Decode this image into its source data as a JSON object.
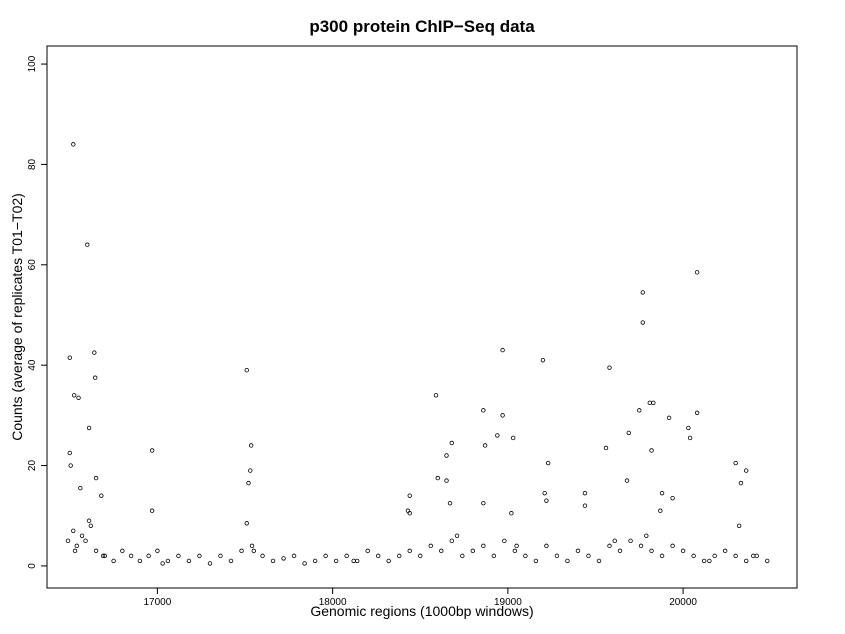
{
  "chart_data": {
    "type": "scatter",
    "title": "p300 protein ChIP−Seq data",
    "xlabel": "Genomic regions (1000bp windows)",
    "ylabel": "Counts (average of replicates T01−T02)",
    "xlim": [
      16370,
      20650
    ],
    "ylim": [
      -4.4,
      103.6
    ],
    "xticks": [
      17000,
      18000,
      19000,
      20000
    ],
    "yticks": [
      0,
      20,
      40,
      60,
      80,
      100
    ],
    "color": "#000000",
    "x": [
      16500,
      16500,
      16505,
      16520,
      16525,
      16550,
      16600,
      16610,
      16640,
      16645,
      16650,
      16680,
      16560,
      16970,
      16970,
      17510,
      17520,
      17530,
      17535,
      17510,
      18440,
      18430,
      18440,
      18590,
      18600,
      18650,
      18650,
      18680,
      18670,
      18860,
      18870,
      18860,
      18940,
      18970,
      18970,
      19030,
      19020,
      19200,
      19210,
      19230,
      19220,
      19440,
      19440,
      19560,
      19580,
      19690,
      19680,
      19750,
      19770,
      19770,
      19810,
      19830,
      19820,
      19880,
      19870,
      19920,
      19940,
      20030,
      20040,
      20080,
      20080,
      20300,
      20330,
      20360,
      20320,
      16490,
      16520,
      16540,
      16570,
      16590,
      16620,
      16650,
      16700,
      16750,
      16800,
      16850,
      16900,
      16950,
      17000,
      17060,
      17120,
      17180,
      17240,
      17300,
      17360,
      17420,
      17480,
      17540,
      17600,
      17660,
      17720,
      17780,
      17840,
      17900,
      17960,
      18020,
      18080,
      18140,
      18200,
      18260,
      18320,
      18380,
      18440,
      18500,
      18560,
      18620,
      18680,
      18740,
      18800,
      18860,
      18920,
      18980,
      19040,
      19100,
      19160,
      19220,
      19280,
      19340,
      19400,
      19460,
      19520,
      19580,
      19640,
      19700,
      19760,
      19820,
      19880,
      19940,
      20000,
      20060,
      20120,
      20180,
      20240,
      20300,
      20360,
      20420,
      20480,
      16530,
      16610,
      16690,
      17030,
      17550,
      18120,
      18710,
      19050,
      19610,
      19790,
      20150,
      20400
    ],
    "values": [
      41.5,
      22.5,
      20,
      84,
      34,
      33.5,
      64,
      27.5,
      42.5,
      37.5,
      17.5,
      14,
      15.5,
      23,
      11,
      39,
      16.5,
      19,
      24,
      8.5,
      14,
      11,
      10.5,
      34,
      17.5,
      22,
      17,
      24.5,
      12.5,
      31,
      24,
      12.5,
      26,
      43,
      30,
      25.5,
      10.5,
      41,
      14.5,
      20.5,
      13,
      14.5,
      12,
      23.5,
      39.5,
      26.5,
      17,
      31,
      54.5,
      48.5,
      32.5,
      32.5,
      23,
      14.5,
      11,
      29.5,
      13.5,
      27.5,
      25.5,
      58.5,
      30.5,
      20.5,
      16.5,
      19,
      8,
      5,
      7,
      4,
      6,
      5,
      8,
      3,
      2,
      1,
      3,
      2,
      1,
      2,
      3,
      1,
      2,
      1,
      2,
      0.5,
      2,
      1,
      3,
      4,
      2,
      1,
      1.5,
      2,
      0.5,
      1,
      2,
      1,
      2,
      1,
      3,
      2,
      1,
      2,
      3,
      2,
      4,
      3,
      5,
      2,
      3,
      4,
      2,
      5,
      3,
      2,
      1,
      4,
      2,
      1,
      3,
      2,
      1,
      4,
      3,
      5,
      4,
      3,
      2,
      4,
      3,
      2,
      1,
      2,
      3,
      2,
      1,
      2,
      1,
      3,
      9,
      2,
      0.5,
      3,
      1,
      6,
      4,
      5,
      6,
      1,
      2
    ]
  }
}
